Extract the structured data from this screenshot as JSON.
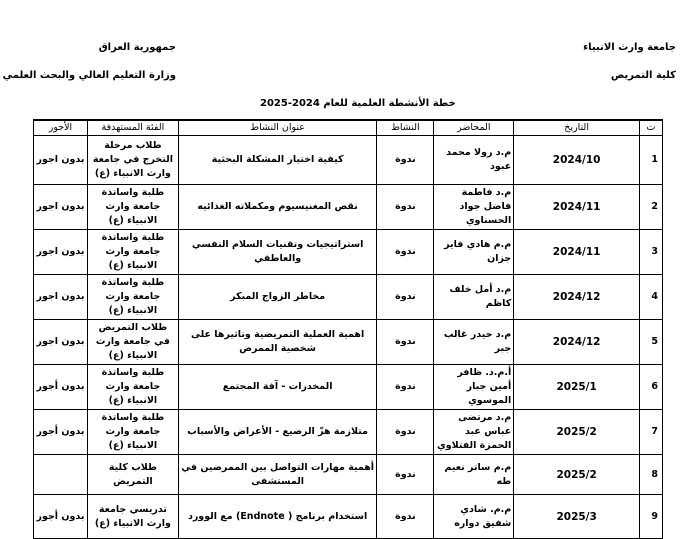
{
  "header": {
    "university": "جامعة وارث الانبياء",
    "college": "كلية التمريض",
    "country": "جمهورية العراق",
    "ministry": "وزارة التعليم العالي والبحث العلمي",
    "title": "خطة الأنشطة العلمية للعام 2024-2025"
  },
  "table": {
    "columns": [
      "ت",
      "التاريخ",
      "المحاضر",
      "النشاط",
      "عنوان النشاط",
      "الفئة المستهدفة",
      "الأجور"
    ],
    "rows": [
      {
        "n": "1",
        "date": "2024/10",
        "lecturer": "م.د رولا محمد عبود",
        "type": "ندوة",
        "title": "كيفية اختيار المشكلة البحثية",
        "target": "طلاب مرحلة التخرج في جامعة وارث الانبياء (ع)",
        "fee": "بدون اجور"
      },
      {
        "n": "2",
        "date": "2024/11",
        "lecturer": "م.د فاطمة فاضل جواد الحسناوي",
        "type": "ندوة",
        "title": "نقص المغنيسيوم ومكملاته الغذائيه",
        "target": "طلبة واساتذة جامعة وارث الانبياء (ع)",
        "fee": "بدون اجور"
      },
      {
        "n": "3",
        "date": "2024/11",
        "lecturer": "م.م هادي فايز جزان",
        "type": "ندوة",
        "title": "استراتيجيات وتقنيات السلام النفسي والعاطفي",
        "target": "طلبة واساتذة جامعة وارث الانبياء (ع)",
        "fee": "بدون اجور"
      },
      {
        "n": "4",
        "date": "2024/12",
        "lecturer": "م.د أمل خلف كاظم",
        "type": "ندوة",
        "title": "مخاطر الزواج المبكر",
        "target": "طلبة واساتذة جامعة وارث الانبياء (ع)",
        "fee": "بدون اجور"
      },
      {
        "n": "5",
        "date": "2024/12",
        "lecturer": "م.د حيدر غالب جبر",
        "type": "ندوة",
        "title": "اهمية العملية التمريضية وتاثيرها على شخصية الممرض",
        "target": "طلاب التمريض في جامعة وارث الانبياء (ع)",
        "fee": "بدون اجور"
      },
      {
        "n": "6",
        "date": "2025/1",
        "lecturer": "أ.م.د. ظافر أمين جبار الموسوي",
        "type": "ندوة",
        "title": "المخدرات - آفة المجتمع",
        "target": "طلبة واساتذة جامعة وارث الانبياء (ع)",
        "fee": "بدون أجور"
      },
      {
        "n": "7",
        "date": "2025/2",
        "lecturer": "م.د مرتضى عباس عبد الحمزة الفتلاوي",
        "type": "ندوة",
        "title": "متلازمة هزّ الرضيع - الأعراض والأسباب",
        "target": "طلبة واساتذة جامعة وارث الانبياء (ع)",
        "fee": "بدون أجور"
      },
      {
        "n": "8",
        "date": "2025/2",
        "lecturer": "م.م ساتر نعيم طه",
        "type": "ندوة",
        "title": "أهمية مهارات التواصل بين الممرضين في المستشفى",
        "target": "طلاب كلية التمريض",
        "fee": ""
      },
      {
        "n": "9",
        "date": "2025/3",
        "lecturer": "م.م. شادي شفيق دواره",
        "type": "ندوة",
        "title": "استخدام برنامج ( Endnote) مع الوورد",
        "target": "تدريسي جامعة وارث الانبياء (ع)",
        "fee": "بدون أجور"
      }
    ]
  }
}
